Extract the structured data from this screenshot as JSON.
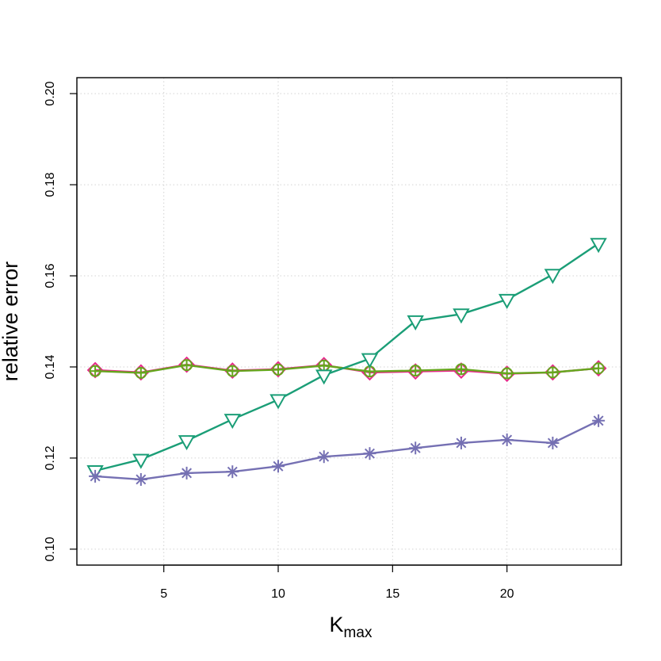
{
  "chart_data": {
    "type": "line",
    "title": "",
    "xlabel": {
      "main": "K",
      "subscript": "max"
    },
    "ylabel": "relative error",
    "xlim": [
      1.2,
      25.0
    ],
    "ylim": [
      0.0965,
      0.2035
    ],
    "xticks": [
      5,
      10,
      15,
      20
    ],
    "yticks": [
      0.1,
      0.12,
      0.14,
      0.16,
      0.18,
      0.2
    ],
    "ytick_labels": [
      "0.10",
      "0.12",
      "0.14",
      "0.16",
      "0.18",
      "0.20"
    ],
    "grid": true,
    "legend": "none",
    "x": [
      2,
      4,
      6,
      8,
      10,
      12,
      14,
      16,
      18,
      20,
      22,
      24
    ],
    "series": [
      {
        "marker": "diamond",
        "color": "#e7298a",
        "values": [
          0.1393,
          0.1388,
          0.1405,
          0.1392,
          0.1395,
          0.1404,
          0.1388,
          0.139,
          0.1392,
          0.1385,
          0.1388,
          0.1397
        ]
      },
      {
        "marker": "circle-plus",
        "color": "#66a61e",
        "values": [
          0.1391,
          0.1387,
          0.1404,
          0.1391,
          0.1394,
          0.1403,
          0.139,
          0.1392,
          0.1395,
          0.1386,
          0.1388,
          0.1397
        ]
      },
      {
        "marker": "triangle-down",
        "color": "#1b9e77",
        "values": [
          0.1172,
          0.1197,
          0.1238,
          0.1285,
          0.1328,
          0.1382,
          0.1418,
          0.1501,
          0.1516,
          0.1548,
          0.1603,
          0.1671
        ]
      },
      {
        "marker": "asterisk",
        "color": "#7570b3",
        "values": [
          0.116,
          0.1153,
          0.1167,
          0.117,
          0.1182,
          0.1203,
          0.121,
          0.1222,
          0.1233,
          0.124,
          0.1233,
          0.1282
        ]
      }
    ]
  }
}
